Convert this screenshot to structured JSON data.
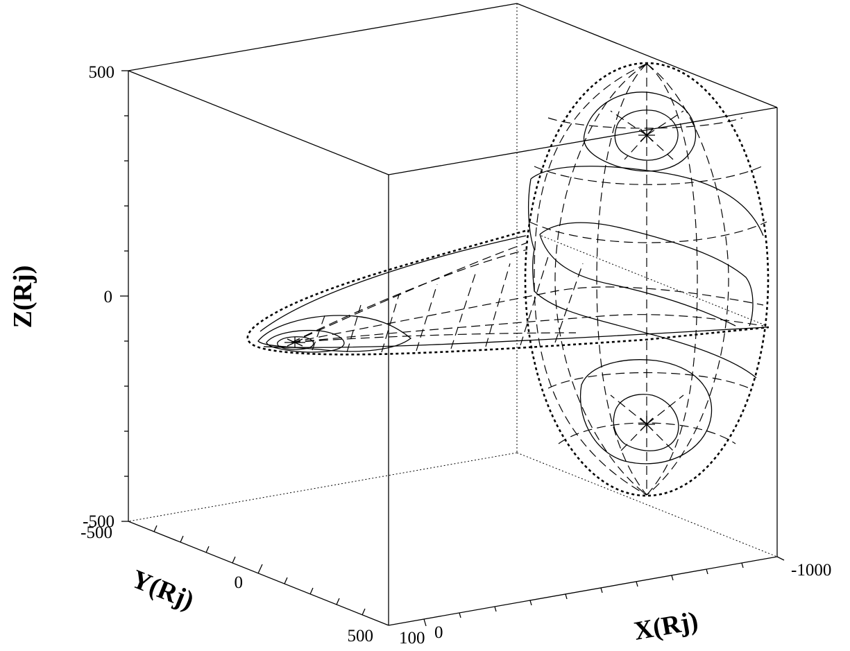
{
  "axes": {
    "z_label": "Z(Rj)",
    "y_label": "Y(Rj)",
    "x_label": "X(Rj)"
  },
  "ticks": {
    "z_top": "500",
    "z_mid": "0",
    "z_bottom": "-500",
    "y_near": "-500",
    "y_mid": "0",
    "y_far": "500",
    "x_100": "100",
    "x_0": "0",
    "x_far": "-1000"
  },
  "figure": {
    "description_type": "3D magnetosphere surface with solid contours and dashed grid lines",
    "x_range": [
      100,
      -1000
    ],
    "y_range": [
      -500,
      500
    ],
    "z_range": [
      -500,
      500
    ]
  }
}
